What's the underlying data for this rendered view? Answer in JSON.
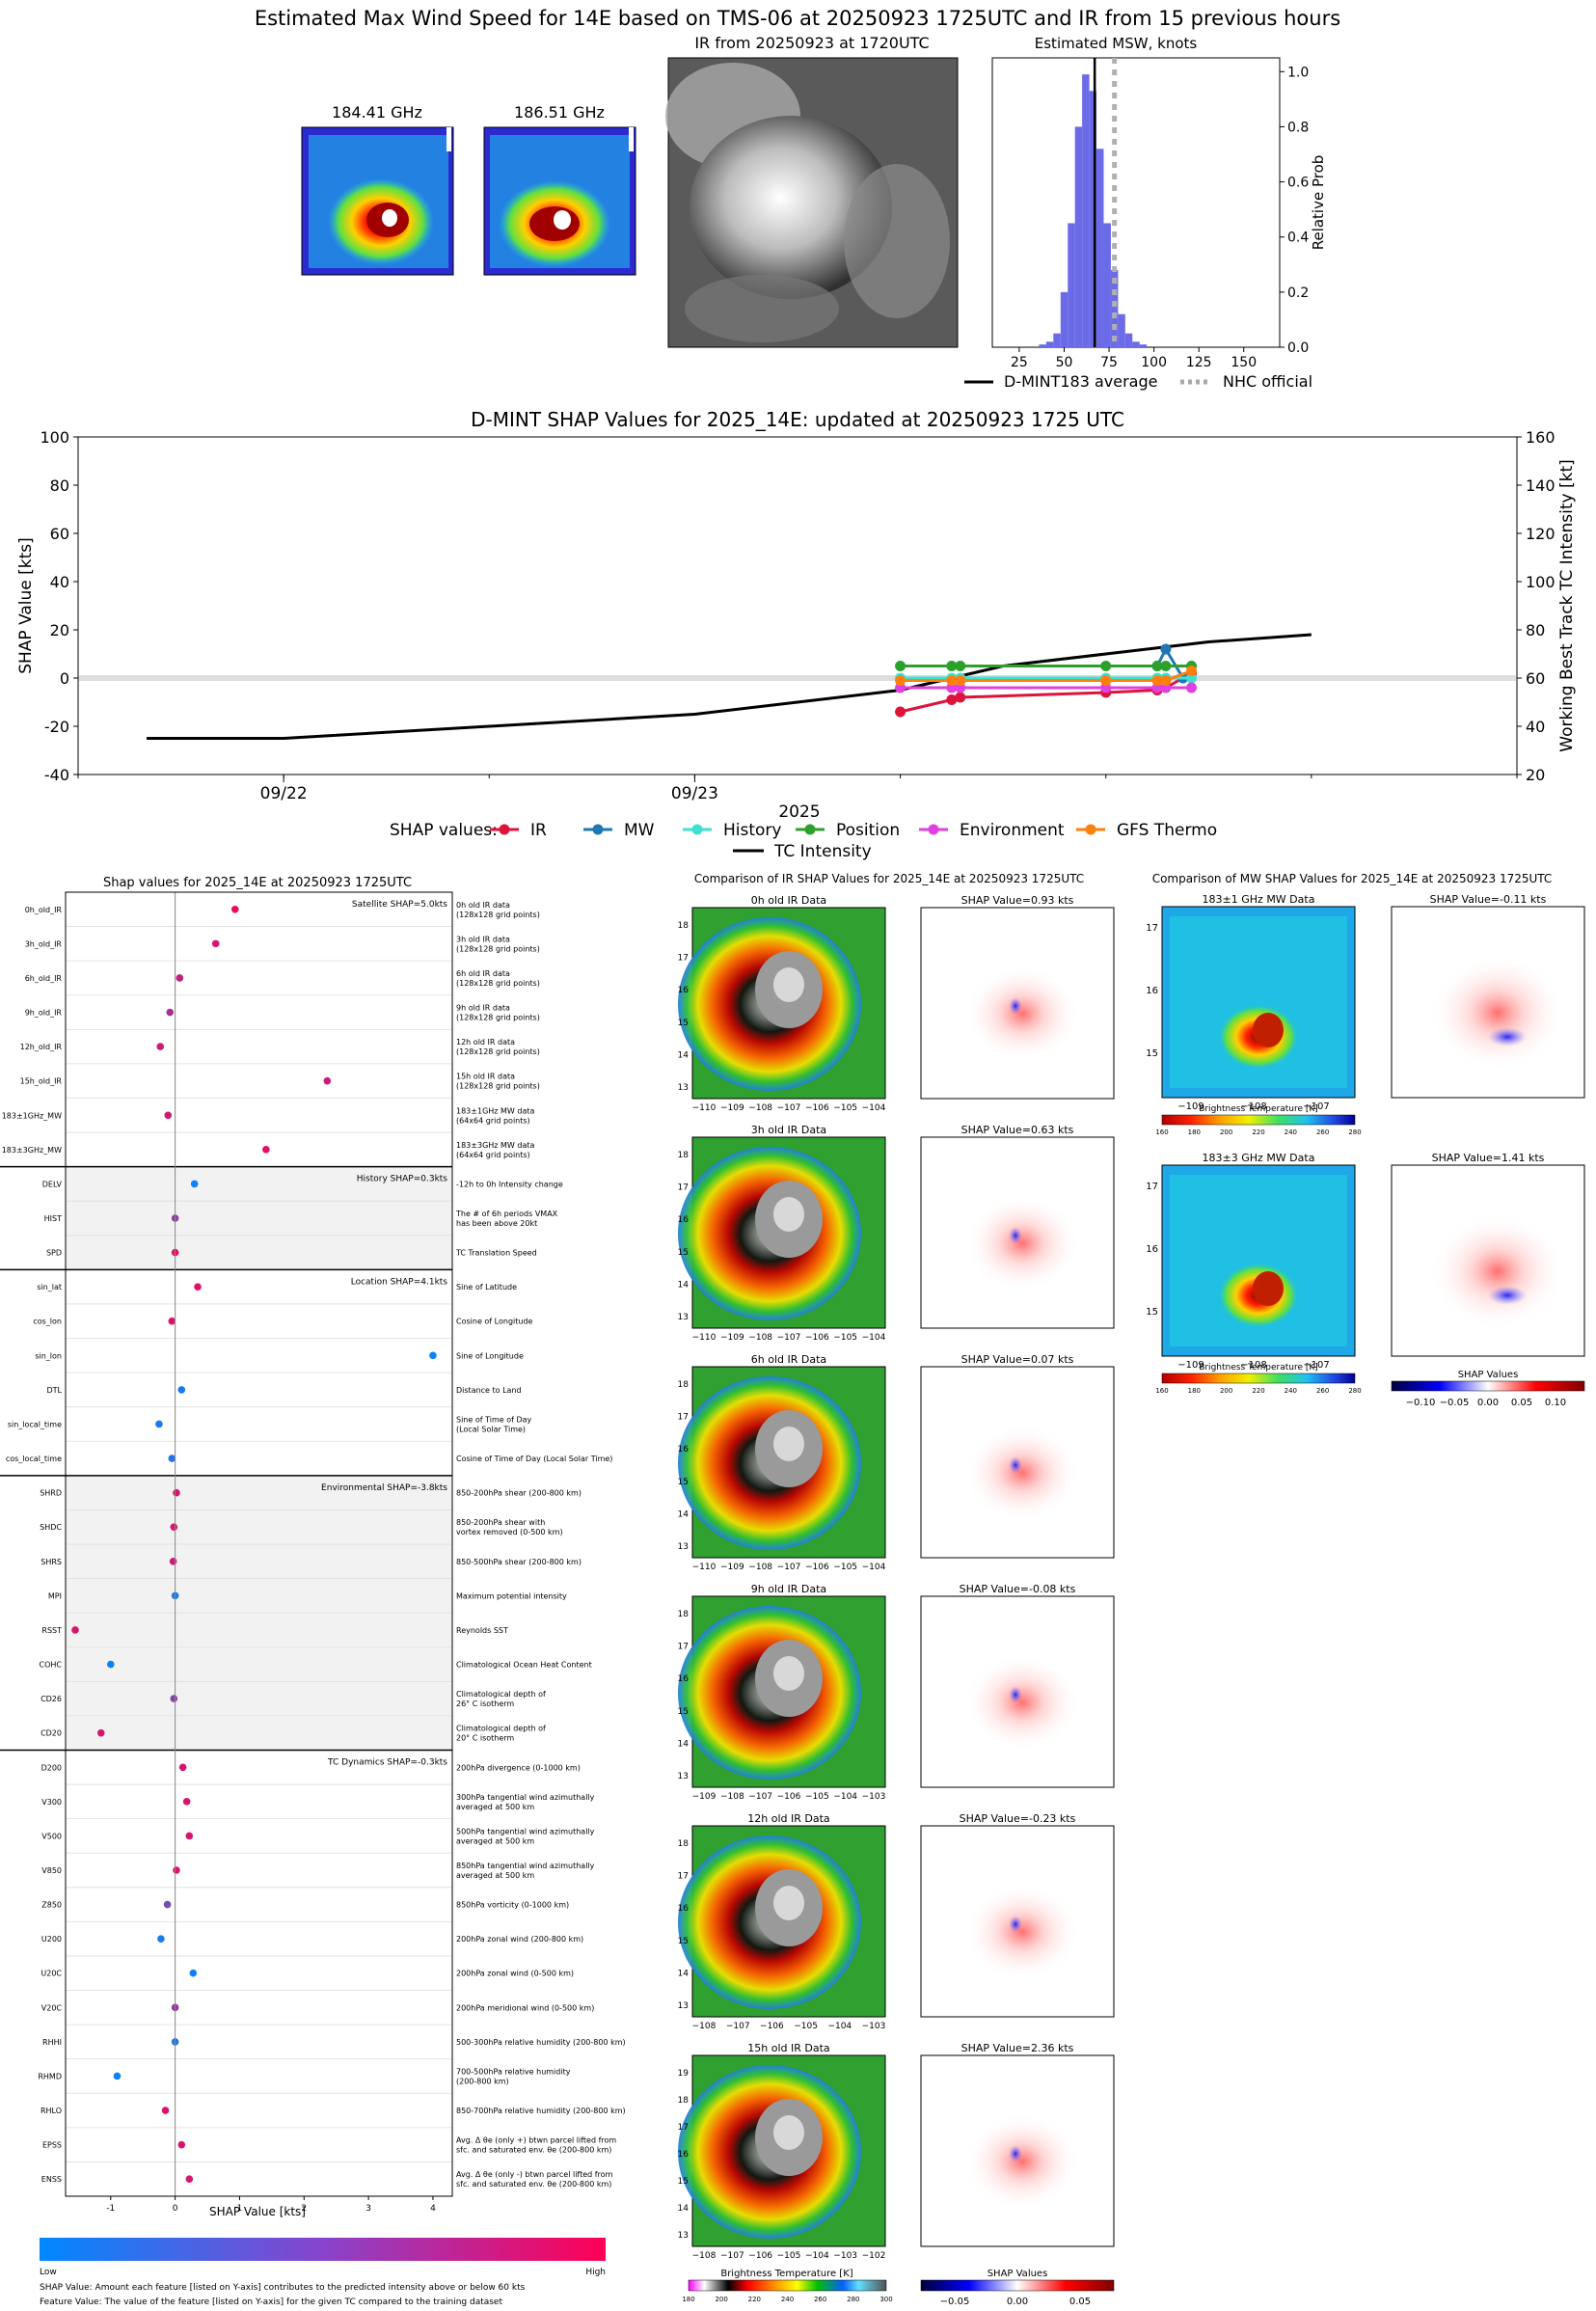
{
  "top": {
    "title": "Estimated Max Wind Speed for 14E based on TMS-06 at 20250923 1725UTC and IR from 15 previous hours",
    "mw1_title": "184.41 GHz",
    "mw2_title": "186.51 GHz",
    "ir_title": "IR from 20250923 at 1720UTC"
  },
  "chart_data": [
    {
      "type": "bar",
      "title": "Estimated MSW, knots",
      "ylabel": "Relative Prob",
      "xlim": [
        10,
        170
      ],
      "ylim": [
        0,
        1.05
      ],
      "xticks": [
        "25",
        "50",
        "75",
        "100",
        "125",
        "150"
      ],
      "yticks": [
        "0.0",
        "0.2",
        "0.4",
        "0.6",
        "0.8",
        "1.0"
      ],
      "x": [
        38,
        42,
        46,
        50,
        54,
        58,
        62,
        66,
        70,
        74,
        78,
        82,
        86,
        90,
        94
      ],
      "values": [
        0.01,
        0.02,
        0.05,
        0.2,
        0.45,
        0.8,
        0.99,
        0.93,
        0.72,
        0.45,
        0.28,
        0.12,
        0.05,
        0.02,
        0.01
      ],
      "dmint_average": 67,
      "nhc_official": 78,
      "legend": [
        "D-MINT183 average",
        "NHC official"
      ]
    },
    {
      "type": "line",
      "title": "D-MINT SHAP Values for 2025_14E: updated at 20250923 1725 UTC",
      "ylabel": "SHAP Value [kts]",
      "y2label": "Working Best Track TC Intensity [kt]",
      "xlabel": "2025",
      "xticks": [
        "09/22",
        "09/23"
      ],
      "ylim": [
        -40,
        100
      ],
      "y2lim": [
        20,
        160
      ],
      "yticks": [
        "-40",
        "-20",
        "0",
        "20",
        "40",
        "60",
        "80",
        "100"
      ],
      "y2ticks": [
        "20",
        "40",
        "60",
        "80",
        "100",
        "120",
        "140",
        "160"
      ],
      "x_hours": [
        -12,
        0,
        12,
        24,
        36,
        48,
        60,
        72
      ],
      "legend_title": "SHAP values:",
      "series": [
        {
          "name": "IR",
          "color": "#dc143c",
          "x": [
            36,
            39,
            39.5,
            48,
            51,
            51.5,
            53
          ],
          "values": [
            -14,
            -9,
            -8,
            -6,
            -5,
            -4,
            2
          ]
        },
        {
          "name": "MW",
          "color": "#1f77b4",
          "x": [
            51,
            51.5,
            52.5
          ],
          "values": [
            5,
            12,
            0
          ]
        },
        {
          "name": "History",
          "color": "#40e0d0",
          "x": [
            36,
            39,
            39.5,
            48,
            51,
            51.5,
            53
          ],
          "values": [
            0,
            0,
            0,
            0,
            0,
            0,
            0
          ]
        },
        {
          "name": "Position",
          "color": "#2ca02c",
          "x": [
            36,
            39,
            39.5,
            48,
            51,
            51.5,
            53
          ],
          "values": [
            5,
            5,
            5,
            5,
            5,
            5,
            5
          ]
        },
        {
          "name": "Environment",
          "color": "#e040e0",
          "x": [
            36,
            39,
            39.5,
            48,
            51,
            51.5,
            53
          ],
          "values": [
            -4,
            -4,
            -4,
            -4,
            -4,
            -4,
            -4
          ]
        },
        {
          "name": "GFS Thermo",
          "color": "#ff7f0e",
          "x": [
            36,
            39,
            39.5,
            48,
            51,
            51.5,
            53
          ],
          "values": [
            -1,
            -1,
            -1,
            -1,
            -1,
            -1,
            3
          ]
        }
      ],
      "intensity": {
        "name": "TC Intensity",
        "color": "#000000",
        "x": [
          -8,
          0,
          12,
          24,
          30,
          36,
          42,
          48,
          54,
          60
        ],
        "values": [
          35,
          35,
          40,
          45,
          50,
          55,
          65,
          70,
          75,
          78
        ]
      }
    }
  ],
  "shap": {
    "title": "Shap values for 2025_14E at 20250923 1725UTC",
    "xlabel": "SHAP Value [kts]",
    "xticks": [
      "-1",
      "0",
      "1",
      "2",
      "3",
      "4"
    ],
    "groups": [
      {
        "label": "Satellite SHAP=5.0kts",
        "shade": false,
        "rows": [
          {
            "name": "0h_old_IR",
            "desc": [
              "0h old IR data",
              "(128x128 grid points)"
            ],
            "value": 0.93,
            "high": 0.95
          },
          {
            "name": "3h_old_IR",
            "desc": [
              "3h old IR data",
              "(128x128 grid points)"
            ],
            "value": 0.63,
            "high": 0.85
          },
          {
            "name": "6h_old_IR",
            "desc": [
              "6h old IR data",
              "(128x128 grid points)"
            ],
            "value": 0.07,
            "high": 0.75
          },
          {
            "name": "9h_old_IR",
            "desc": [
              "9h old IR data",
              "(128x128 grid points)"
            ],
            "value": -0.08,
            "high": 0.65
          },
          {
            "name": "12h_old_IR",
            "desc": [
              "12h old IR data",
              "(128x128 grid points)"
            ],
            "value": -0.23,
            "high": 0.8
          },
          {
            "name": "15h_old_IR",
            "desc": [
              "15h old IR data",
              "(128x128 grid points)"
            ],
            "value": 2.36,
            "high": 0.8
          },
          {
            "name": "183±1GHz_MW",
            "desc": [
              "183±1GHz MW data",
              "(64x64 grid points)"
            ],
            "value": -0.11,
            "high": 0.8
          },
          {
            "name": "183±3GHz_MW",
            "desc": [
              "183±3GHz MW data",
              "(64x64 grid points)"
            ],
            "value": 1.41,
            "high": 0.9
          }
        ]
      },
      {
        "label": "History SHAP=0.3kts",
        "shade": true,
        "rows": [
          {
            "name": "DELV",
            "desc": [
              "-12h to 0h Intensity change"
            ],
            "value": 0.3,
            "high": 0.05
          },
          {
            "name": "HIST",
            "desc": [
              "The # of 6h periods VMAX",
              "has been above 20kt"
            ],
            "value": 0.0,
            "high": 0.55
          },
          {
            "name": "SPD",
            "desc": [
              "TC Translation Speed"
            ],
            "value": 0.0,
            "high": 0.9
          }
        ]
      },
      {
        "label": "Location SHAP=4.1kts",
        "shade": false,
        "rows": [
          {
            "name": "sin_lat",
            "desc": [
              "Sine of Latitude"
            ],
            "value": 0.35,
            "high": 0.9
          },
          {
            "name": "cos_lon",
            "desc": [
              "Cosine of Longitude"
            ],
            "value": -0.05,
            "high": 0.85
          },
          {
            "name": "sin_lon",
            "desc": [
              "Sine of Longitude"
            ],
            "value": 4.0,
            "high": 0.05
          },
          {
            "name": "DTL",
            "desc": [
              "Distance to Land"
            ],
            "value": 0.1,
            "high": 0.1
          },
          {
            "name": "sin_local_time",
            "desc": [
              "Sine of Time of Day",
              "(Local Solar Time)"
            ],
            "value": -0.25,
            "high": 0.1
          },
          {
            "name": "cos_local_time",
            "desc": [
              "Cosine of Time of Day (Local Solar Time)"
            ],
            "value": -0.05,
            "high": 0.15
          }
        ]
      },
      {
        "label": "Environmental SHAP=-3.8kts",
        "shade": true,
        "rows": [
          {
            "name": "SHRD",
            "desc": [
              "850-200hPa shear (200-800 km)"
            ],
            "value": 0.02,
            "high": 0.85
          },
          {
            "name": "SHDC",
            "desc": [
              "850-200hPa shear with",
              "vortex removed (0-500 km)"
            ],
            "value": -0.02,
            "high": 0.85
          },
          {
            "name": "SHRS",
            "desc": [
              "850-500hPa shear (200-800 km)"
            ],
            "value": -0.03,
            "high": 0.8
          },
          {
            "name": "MPI",
            "desc": [
              "Maximum potential intensity"
            ],
            "value": 0.0,
            "high": 0.1
          },
          {
            "name": "RSST",
            "desc": [
              "Reynolds SST"
            ],
            "value": -1.55,
            "high": 0.85
          },
          {
            "name": "COHC",
            "desc": [
              "Climatological Ocean Heat Content"
            ],
            "value": -1.0,
            "high": 0.05
          },
          {
            "name": "CD26",
            "desc": [
              "Climatological depth of",
              "26° C isotherm"
            ],
            "value": -0.02,
            "high": 0.5
          },
          {
            "name": "CD20",
            "desc": [
              "Climatological depth of",
              "20° C isotherm"
            ],
            "value": -1.15,
            "high": 0.85
          }
        ]
      },
      {
        "label": "TC Dynamics SHAP=-0.3kts",
        "shade": false,
        "rows": [
          {
            "name": "D200",
            "desc": [
              "200hPa divergence (0-1000 km)"
            ],
            "value": 0.12,
            "high": 0.85
          },
          {
            "name": "V300",
            "desc": [
              "300hPa tangential wind azimuthally",
              "averaged at 500 km"
            ],
            "value": 0.18,
            "high": 0.85
          },
          {
            "name": "V500",
            "desc": [
              "500hPa tangential wind azimuthally",
              "averaged at 500 km"
            ],
            "value": 0.22,
            "high": 0.85
          },
          {
            "name": "V850",
            "desc": [
              "850hPa tangential wind azimuthally",
              "averaged at 500 km"
            ],
            "value": 0.02,
            "high": 0.85
          },
          {
            "name": "Z850",
            "desc": [
              "850hPa vorticity (0-1000 km)"
            ],
            "value": -0.12,
            "high": 0.45
          },
          {
            "name": "U200",
            "desc": [
              "200hPa zonal wind (200-800 km)"
            ],
            "value": -0.22,
            "high": 0.1
          },
          {
            "name": "U20C",
            "desc": [
              "200hPa zonal wind (0-500 km)"
            ],
            "value": 0.28,
            "high": 0.05
          },
          {
            "name": "V20C",
            "desc": [
              "200hPa meridional wind (0-500 km)"
            ],
            "value": 0.0,
            "high": 0.6
          },
          {
            "name": "RHHI",
            "desc": [
              "500-300hPa relative humidity (200-800 km)"
            ],
            "value": 0.0,
            "high": 0.15
          },
          {
            "name": "RHMD",
            "desc": [
              "700-500hPa relative humidity",
              "(200-800 km)"
            ],
            "value": -0.9,
            "high": 0.05
          },
          {
            "name": "RHLO",
            "desc": [
              "850-700hPa relative humidity (200-800 km)"
            ],
            "value": -0.15,
            "high": 0.85
          },
          {
            "name": "EPSS",
            "desc": [
              "Avg. Δ θe (only +) btwn parcel lifted from",
              "sfc. and saturated env. θe (200-800 km)"
            ],
            "value": 0.1,
            "high": 0.85
          },
          {
            "name": "ENSS",
            "desc": [
              "Avg. Δ θe (only -) btwn parcel lifted from",
              "sfc. and saturated env. θe (200-800 km)"
            ],
            "value": 0.22,
            "high": 0.85
          }
        ]
      }
    ],
    "colorbar_low": "Low",
    "colorbar_high": "High",
    "note1": "SHAP Value: Amount each feature [listed on Y-axis] contributes to the predicted intensity above or below 60 kts",
    "note2": "Feature Value: The value of the feature [listed on Y-axis] for the given TC compared to the training dataset"
  },
  "ir_compare": {
    "title": "Comparison of IR SHAP Values for 2025_14E at 20250923 1725UTC",
    "panels": [
      {
        "data_title": "0h old IR Data",
        "shap_title": "SHAP Value=0.93 kts",
        "yticks": [
          "18",
          "17",
          "16",
          "15",
          "14",
          "13"
        ],
        "xticks": [
          "−110",
          "−109",
          "−108",
          "−107",
          "−106",
          "−105",
          "−104"
        ]
      },
      {
        "data_title": "3h old IR Data",
        "shap_title": "SHAP Value=0.63 kts",
        "yticks": [
          "18",
          "17",
          "16",
          "15",
          "14",
          "13"
        ],
        "xticks": [
          "−110",
          "−109",
          "−108",
          "−107",
          "−106",
          "−105",
          "−104"
        ]
      },
      {
        "data_title": "6h old IR Data",
        "shap_title": "SHAP Value=0.07 kts",
        "yticks": [
          "18",
          "17",
          "16",
          "15",
          "14",
          "13"
        ],
        "xticks": [
          "−110",
          "−109",
          "−108",
          "−107",
          "−106",
          "−105",
          "−104"
        ]
      },
      {
        "data_title": "9h old IR Data",
        "shap_title": "SHAP Value=-0.08 kts",
        "yticks": [
          "18",
          "17",
          "16",
          "15",
          "14",
          "13"
        ],
        "xticks": [
          "−109",
          "−108",
          "−107",
          "−106",
          "−105",
          "−104",
          "−103"
        ]
      },
      {
        "data_title": "12h old IR Data",
        "shap_title": "SHAP Value=-0.23 kts",
        "yticks": [
          "18",
          "17",
          "16",
          "15",
          "14",
          "13"
        ],
        "xticks": [
          "−108",
          "−107",
          "−106",
          "−105",
          "−104",
          "−103"
        ]
      },
      {
        "data_title": "15h old IR Data",
        "shap_title": "SHAP Value=2.36 kts",
        "yticks": [
          "19",
          "18",
          "17",
          "16",
          "15",
          "14",
          "13"
        ],
        "xticks": [
          "−108",
          "−107",
          "−106",
          "−105",
          "−104",
          "−103",
          "−102"
        ]
      }
    ],
    "cbar_label": "Brightness Temperature [K]",
    "cbar_ticks": [
      "180",
      "200",
      "220",
      "240",
      "260",
      "280",
      "300"
    ],
    "shap_cbar_label": "SHAP Values",
    "shap_cbar_ticks": [
      "−0.05",
      "0.00",
      "0.05"
    ]
  },
  "mw_compare": {
    "title": "Comparison of MW SHAP Values for 2025_14E at 20250923 1725UTC",
    "panels": [
      {
        "data_title": "183±1 GHz MW Data",
        "shap_title": "SHAP Value=-0.11 kts"
      },
      {
        "data_title": "183±3 GHz MW Data",
        "shap_title": "SHAP Value=1.41 kts"
      }
    ],
    "yticks": [
      "17",
      "16",
      "15"
    ],
    "xticks": [
      "−109",
      "−108",
      "−107"
    ],
    "cbar_label": "Brightness Temperature [K]",
    "cbar_ticks": [
      "160",
      "180",
      "200",
      "220",
      "240",
      "260",
      "280"
    ],
    "shap_cbar_label": "SHAP Values",
    "shap_cbar_ticks": [
      "−0.10",
      "−0.05",
      "0.00",
      "0.05",
      "0.10"
    ]
  }
}
